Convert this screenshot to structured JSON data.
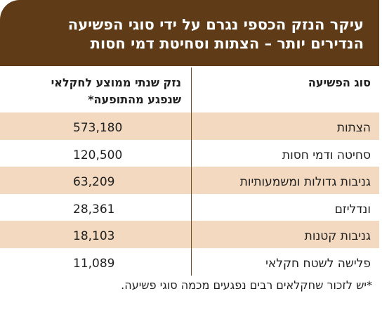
{
  "title": {
    "line1": "עיקר הנזק הכספי נגרם על ידי סוגי הפשיעה",
    "line2": "הנדירים יותר – הצתות וסחיטת דמי חסות"
  },
  "table": {
    "headers": {
      "type": "סוג הפשיעה",
      "damage_line1": "נזק שנתי ממוצע לחקלאי",
      "damage_line2": "שנפגע מהתופעה*"
    },
    "rows": [
      {
        "type": "הצתות",
        "value": "573,180"
      },
      {
        "type": "סחיטה ודמי חסות",
        "value": "120,500"
      },
      {
        "type": "גניבות גדולות ומשמעותיות",
        "value": "63,209"
      },
      {
        "type": "ונדליזם",
        "value": "28,361"
      },
      {
        "type": "גניבות קטנות",
        "value": "18,103"
      },
      {
        "type": "פלישה לשטח חקלאי",
        "value": "11,089"
      }
    ],
    "colors": {
      "header_bg": "#5f3b17",
      "row_shade": "#f2d9c0"
    }
  },
  "footnote": "*יש לזכור שחקלאים רבים נפגעים מכמה סוגי פשיעה."
}
